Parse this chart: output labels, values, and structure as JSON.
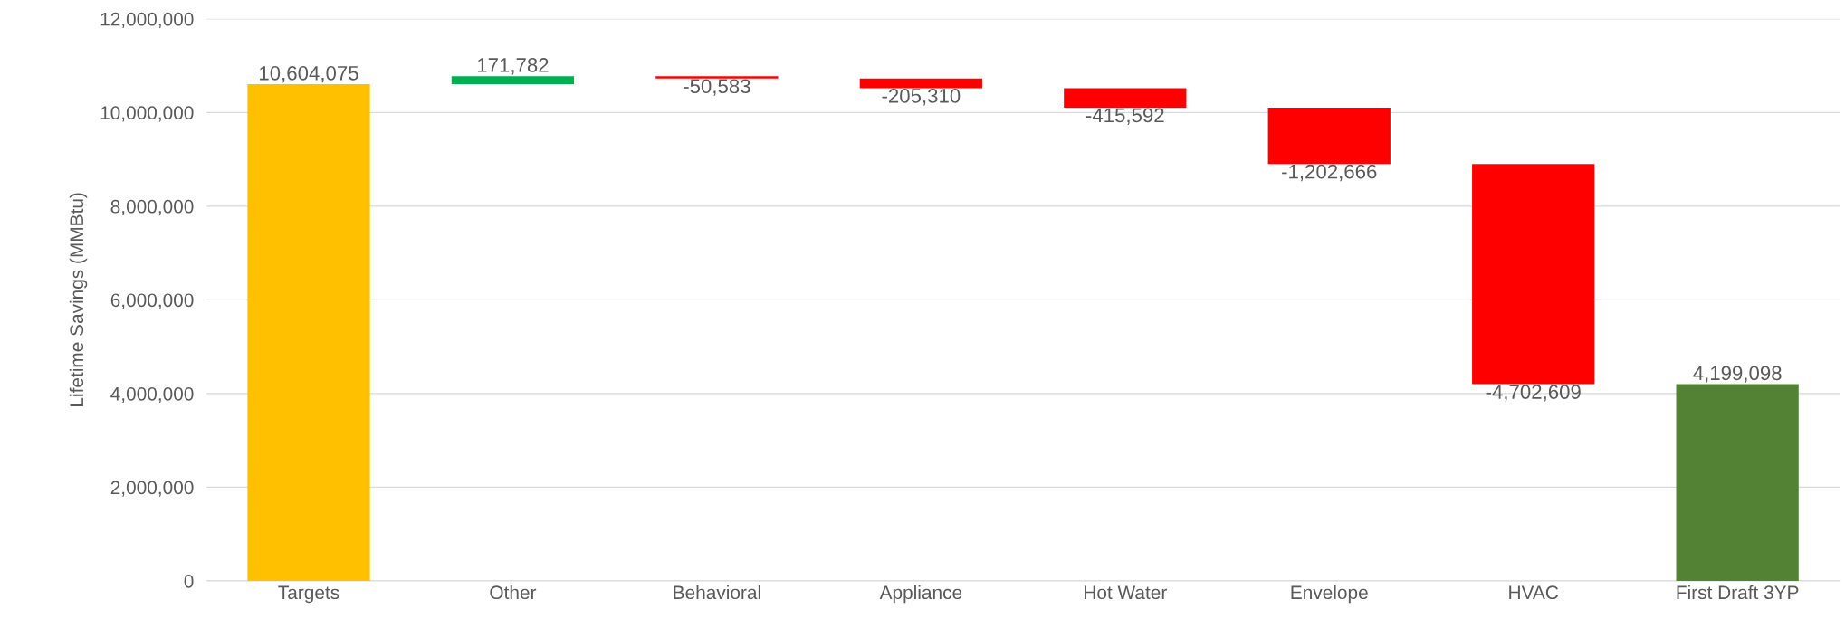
{
  "chart_data": {
    "type": "bar",
    "ylabel": "Lifetime Savings (MMBtu)",
    "categories": [
      "Targets",
      "Other",
      "Behavioral",
      "Appliance",
      "Hot Water",
      "Envelope",
      "HVAC",
      "First Draft 3YP"
    ],
    "values": [
      10604075,
      171782,
      -50583,
      -205310,
      -415592,
      -1202666,
      -4702609,
      4199098
    ],
    "base": [
      0,
      10604075,
      10775857,
      10725274,
      10519964,
      10104372,
      8901706,
      0
    ],
    "colors": [
      "#ffc000",
      "#00b050",
      "#ff0000",
      "#ff0000",
      "#ff0000",
      "#ff0000",
      "#ff0000",
      "#548235"
    ],
    "value_labels": [
      "10,604,075",
      "171,782",
      "-50,583",
      "-205,310",
      "-415,592",
      "-1,202,666",
      "-4,702,609",
      "4,199,098"
    ],
    "ylim": [
      0,
      12000000
    ],
    "yticks": [
      0,
      {
        "value": 2000000,
        "label": "2,000,000"
      },
      {
        "value": 4000000,
        "label": "4,000,000"
      },
      {
        "value": 6000000,
        "label": "6,000,000"
      },
      {
        "value": 8000000,
        "label": "8,000,000"
      },
      {
        "value": 10000000,
        "label": "10,000,000"
      },
      {
        "value": 12000000,
        "label": "12,000,000"
      }
    ],
    "grid": "y"
  }
}
